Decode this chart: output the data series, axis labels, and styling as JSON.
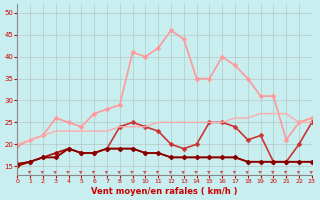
{
  "title": "",
  "xlabel": "Vent moyen/en rafales ( km/h )",
  "ylabel": "",
  "xlim": [
    0,
    23
  ],
  "ylim": [
    13,
    52
  ],
  "xticks": [
    0,
    1,
    2,
    3,
    4,
    5,
    6,
    7,
    8,
    9,
    10,
    11,
    12,
    13,
    14,
    15,
    16,
    17,
    18,
    19,
    20,
    21,
    22,
    23
  ],
  "yticks": [
    15,
    20,
    25,
    30,
    35,
    40,
    45,
    50
  ],
  "bg_color": "#c8eef0",
  "grid_color": "#aaaaaa",
  "series": [
    {
      "x": [
        0,
        1,
        2,
        3,
        4,
        5,
        6,
        7,
        8,
        9,
        10,
        11,
        12,
        13,
        14,
        15,
        16,
        17,
        18,
        19,
        20,
        21,
        22,
        23
      ],
      "y": [
        19.5,
        21,
        22,
        26,
        25,
        24,
        27,
        28,
        29,
        41,
        40,
        42,
        46,
        44,
        35,
        35,
        40,
        38,
        35,
        31,
        31,
        21,
        25,
        26
      ],
      "color": "#ff9999",
      "lw": 1.2,
      "marker": "D",
      "ms": 2.5
    },
    {
      "x": [
        0,
        1,
        2,
        3,
        4,
        5,
        6,
        7,
        8,
        9,
        10,
        11,
        12,
        13,
        14,
        15,
        16,
        17,
        18,
        19,
        20,
        21,
        22,
        23
      ],
      "y": [
        15.5,
        16,
        17,
        17,
        19,
        18,
        18,
        19,
        24,
        25,
        24,
        23,
        20,
        19,
        20,
        25,
        25,
        24,
        21,
        22,
        16,
        16,
        20,
        25
      ],
      "color": "#cc3333",
      "lw": 1.2,
      "marker": "D",
      "ms": 2.5
    },
    {
      "x": [
        0,
        1,
        2,
        3,
        4,
        5,
        6,
        7,
        8,
        9,
        10,
        11,
        12,
        13,
        14,
        15,
        16,
        17,
        18,
        19,
        20,
        21,
        22,
        23
      ],
      "y": [
        15,
        16,
        17,
        18,
        19,
        18,
        18,
        19,
        19,
        19,
        18,
        18,
        17,
        17,
        17,
        17,
        17,
        17,
        16,
        16,
        16,
        16,
        16,
        16
      ],
      "color": "#aa0000",
      "lw": 1.2,
      "marker": "D",
      "ms": 2.5
    },
    {
      "x": [
        0,
        1,
        2,
        3,
        4,
        5,
        6,
        7,
        8,
        9,
        10,
        11,
        12,
        13,
        14,
        15,
        16,
        17,
        18,
        19,
        20,
        21,
        22,
        23
      ],
      "y": [
        15.5,
        16,
        17,
        17,
        19,
        18,
        18,
        19,
        19,
        19,
        18,
        18,
        17,
        17,
        17,
        17,
        17,
        17,
        16,
        16,
        16,
        16,
        16,
        16
      ],
      "color": "#880000",
      "lw": 1.2,
      "marker": "D",
      "ms": 2.5
    },
    {
      "x": [
        0,
        1,
        2,
        3,
        4,
        5,
        6,
        7,
        8,
        9,
        10,
        11,
        12,
        13,
        14,
        15,
        16,
        17,
        18,
        19,
        20,
        21,
        22,
        23
      ],
      "y": [
        20,
        21,
        22,
        23,
        23,
        23,
        23,
        23,
        24,
        24,
        24,
        25,
        25,
        25,
        25,
        25,
        25,
        26,
        26,
        27,
        27,
        27,
        25,
        25
      ],
      "color": "#ffaaaa",
      "lw": 1.0,
      "marker": null,
      "ms": 0
    }
  ],
  "arrow_color": "#cc3333"
}
